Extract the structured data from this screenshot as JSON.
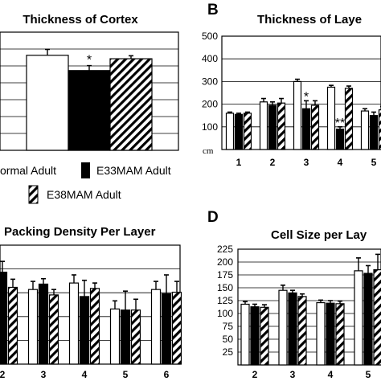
{
  "panel_letters": [
    "B",
    "D"
  ],
  "legend": {
    "items": [
      {
        "label": "ormal Adult",
        "style": "open"
      },
      {
        "label": "E33MAM Adult",
        "style": "solid"
      },
      {
        "label": "E38MAM Adult",
        "style": "hatched"
      }
    ]
  },
  "chart_data": [
    {
      "id": "A",
      "type": "bar",
      "title": "Thickness of Cortex",
      "categories": [
        ""
      ],
      "series": [
        {
          "values": [
            1.93
          ],
          "errors": [
            0.12
          ]
        },
        {
          "values": [
            1.62
          ],
          "errors": [
            0.1
          ]
        },
        {
          "values": [
            1.86
          ],
          "errors": [
            0.06
          ]
        }
      ],
      "ylim": [
        0,
        2.4
      ],
      "grid": true,
      "annotations": [
        {
          "text": "*",
          "category_index": 0,
          "series_index": 1
        }
      ]
    },
    {
      "id": "B",
      "type": "bar",
      "title": "Thickness of Laye",
      "unit_label": "cm",
      "categories": [
        "1",
        "2",
        "3",
        "4",
        "5"
      ],
      "yticks": [
        "100",
        "200",
        "300",
        "400",
        "500"
      ],
      "series": [
        {
          "values": [
            160,
            210,
            300,
            275,
            170
          ],
          "errors": [
            5,
            15,
            10,
            8,
            10
          ]
        },
        {
          "values": [
            155,
            195,
            180,
            90,
            150
          ],
          "errors": [
            5,
            15,
            35,
            10,
            15
          ]
        },
        {
          "values": [
            160,
            205,
            195,
            270,
            175
          ],
          "errors": [
            5,
            20,
            20,
            10,
            15
          ]
        }
      ],
      "ylim": [
        0,
        500
      ],
      "grid": true,
      "annotations": [
        {
          "text": "*",
          "category_index": 2,
          "series_index": 1
        },
        {
          "text": "**",
          "category_index": 3,
          "series_index": 1
        }
      ]
    },
    {
      "id": "C",
      "type": "bar",
      "title": "Packing Density Per Layer",
      "categories": [
        "2",
        "3",
        "4",
        "5",
        "6"
      ],
      "series": [
        {
          "values": [
            158,
            138,
            150,
            102,
            138
          ],
          "errors": [
            10,
            15,
            15,
            15,
            15
          ]
        },
        {
          "values": [
            170,
            148,
            125,
            100,
            130
          ],
          "errors": [
            20,
            10,
            30,
            35,
            35
          ]
        },
        {
          "values": [
            142,
            128,
            140,
            100,
            133
          ],
          "errors": [
            15,
            10,
            10,
            20,
            20
          ]
        }
      ],
      "ylim": [
        0,
        220
      ],
      "grid": true
    },
    {
      "id": "D",
      "type": "bar",
      "title": "Cell Size per Lay",
      "categories": [
        "2",
        "3",
        "4",
        "5"
      ],
      "yticks": [
        "25",
        "50",
        "75",
        "100",
        "125",
        "150",
        "175",
        "200",
        "225"
      ],
      "series": [
        {
          "values": [
            118,
            145,
            121,
            183
          ],
          "errors": [
            5,
            10,
            5,
            25
          ]
        },
        {
          "values": [
            113,
            140,
            120,
            178
          ],
          "errors": [
            5,
            5,
            5,
            15
          ]
        },
        {
          "values": [
            112,
            133,
            119,
            185
          ],
          "errors": [
            5,
            5,
            5,
            30
          ]
        }
      ],
      "ylim": [
        0,
        225
      ],
      "grid": true
    }
  ]
}
